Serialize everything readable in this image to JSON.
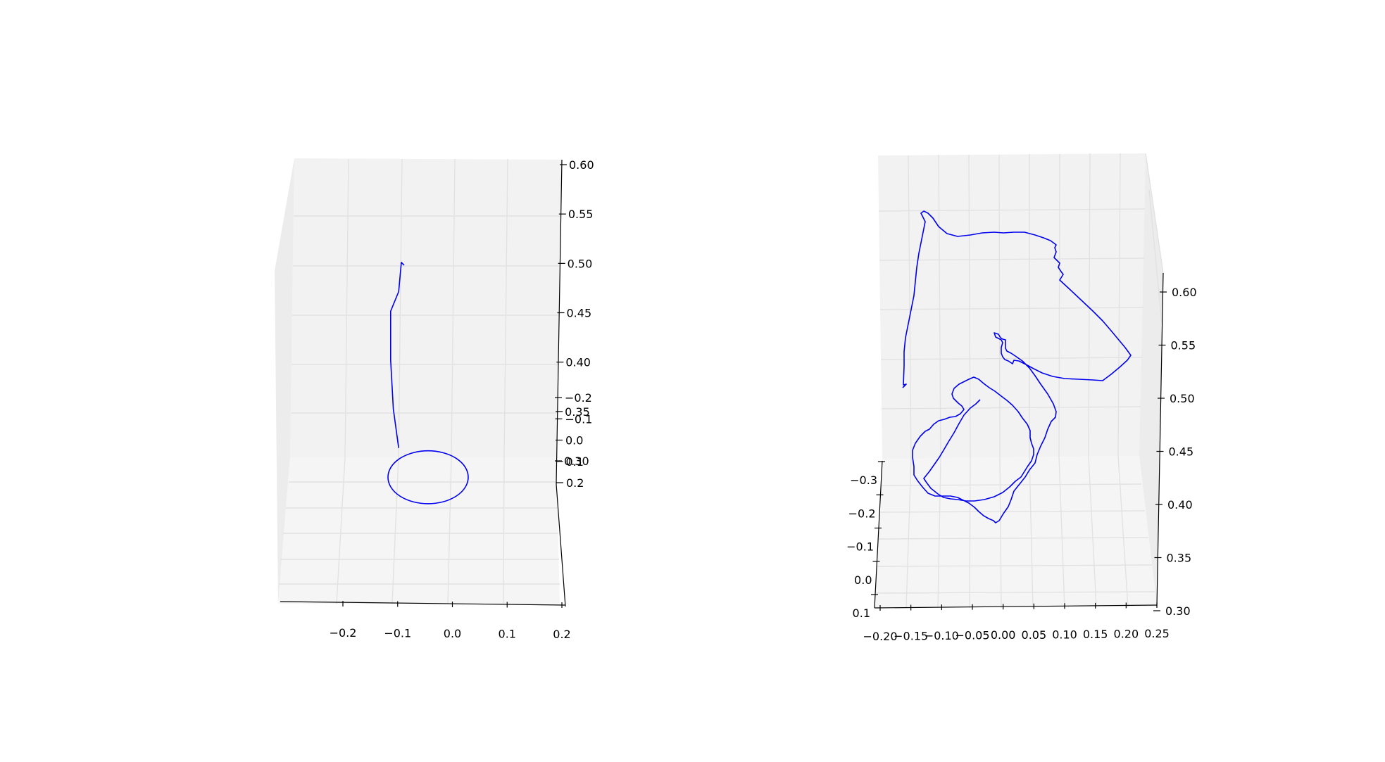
{
  "chart_data": [
    {
      "type": "line",
      "projection": "3d",
      "title": "",
      "xlabel": "",
      "ylabel": "",
      "zlabel": "",
      "xlim": [
        -0.3,
        0.2
      ],
      "ylim": [
        -0.2,
        0.25
      ],
      "zlim": [
        0.25,
        0.6
      ],
      "x_ticks": [
        "−0.2",
        "−0.1",
        "0.0",
        "0.1",
        "0.2"
      ],
      "y_ticks": [
        "−0.2",
        "−0.1",
        "0.0",
        "0.1",
        "0.2"
      ],
      "z_ticks": [
        "0.30",
        "0.35",
        "0.40",
        "0.45",
        "0.50",
        "0.55",
        "0.60"
      ],
      "grid": true,
      "series_color": "#0000ee",
      "series": [
        {
          "shape": "stem-and-loop",
          "description_points": [
            [
              -0.1,
              0.0,
              0.5
            ],
            [
              -0.105,
              0.0,
              0.47
            ],
            [
              -0.12,
              0.0,
              0.45
            ],
            [
              -0.12,
              0.0,
              0.4
            ],
            [
              -0.115,
              0.0,
              0.35
            ],
            [
              -0.105,
              0.0,
              0.31
            ]
          ],
          "loop": {
            "center": [
              -0.05,
              0.0,
              0.28
            ],
            "radius": 0.075
          }
        }
      ]
    },
    {
      "type": "line",
      "projection": "3d",
      "title": "",
      "xlabel": "",
      "ylabel": "",
      "zlabel": "",
      "xlim": [
        -0.2,
        0.25
      ],
      "ylim": [
        -0.3,
        0.1
      ],
      "zlim": [
        0.3,
        0.6
      ],
      "x_ticks": [
        "−0.20",
        "−0.15",
        "−0.10",
        "−0.05",
        "0.00",
        "0.05",
        "0.10",
        "0.15",
        "0.20",
        "0.25"
      ],
      "y_ticks": [
        "−0.3",
        "−0.2",
        "−0.1",
        "0.0",
        "0.1"
      ],
      "z_ticks": [
        "0.30",
        "0.35",
        "0.40",
        "0.45",
        "0.50",
        "0.55",
        "0.60"
      ],
      "grid": true,
      "series_color": "#0000ee",
      "series": [
        {
          "shape": "freehand-trace"
        }
      ]
    }
  ]
}
